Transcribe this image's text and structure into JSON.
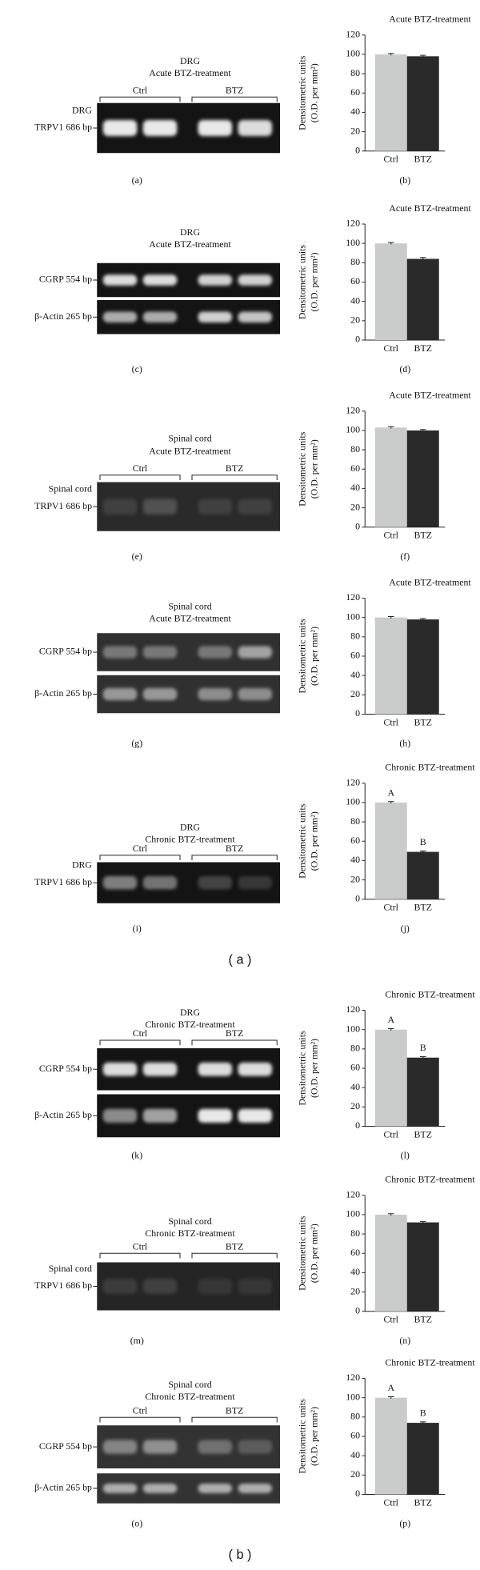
{
  "chart_data": [
    {
      "type": "bar",
      "title": "Acute BTZ-treatment",
      "ylabel": [
        "Densitometric units",
        "(O.D. per mm²)"
      ],
      "categories": [
        "Ctrl",
        "BTZ"
      ],
      "values": [
        100,
        98
      ],
      "errors": [
        1,
        1
      ],
      "colors": [
        "#c9cccb",
        "#2a2a2a"
      ],
      "ylim": [
        0,
        120
      ],
      "yticks": [
        0,
        20,
        40,
        60,
        80,
        100,
        120
      ],
      "panel": "(b)"
    },
    {
      "type": "bar",
      "title": "Acute BTZ-treatment",
      "ylabel": [
        "Densitometric units",
        "(O.D. per mm²)"
      ],
      "categories": [
        "Ctrl",
        "BTZ"
      ],
      "values": [
        100,
        84
      ],
      "errors": [
        1,
        1.5
      ],
      "colors": [
        "#c9cccb",
        "#2a2a2a"
      ],
      "ylim": [
        0,
        120
      ],
      "yticks": [
        0,
        20,
        40,
        60,
        80,
        100,
        120
      ],
      "panel": "(d)"
    },
    {
      "type": "bar",
      "title": "Acute BTZ-treatment",
      "ylabel": [
        "Densitometric units",
        "(O.D. per mm²)"
      ],
      "categories": [
        "Ctrl",
        "BTZ"
      ],
      "values": [
        103,
        100
      ],
      "errors": [
        1,
        1
      ],
      "colors": [
        "#c9cccb",
        "#2a2a2a"
      ],
      "ylim": [
        0,
        120
      ],
      "yticks": [
        0,
        20,
        40,
        60,
        80,
        100,
        120
      ],
      "panel": "(f)"
    },
    {
      "type": "bar",
      "title": "Acute BTZ-treatment",
      "ylabel": [
        "Densitometric units",
        "(O.D. per mm²)"
      ],
      "categories": [
        "Ctrl",
        "BTZ"
      ],
      "values": [
        100,
        98
      ],
      "errors": [
        1,
        1
      ],
      "colors": [
        "#c9cccb",
        "#2a2a2a"
      ],
      "ylim": [
        0,
        120
      ],
      "yticks": [
        0,
        20,
        40,
        60,
        80,
        100,
        120
      ],
      "panel": "(h)"
    },
    {
      "type": "bar",
      "title": "Chronic BTZ-treatment",
      "ylabel": [
        "Densitometric units",
        "(O.D. per mm²)"
      ],
      "categories": [
        "Ctrl",
        "BTZ"
      ],
      "values": [
        100,
        49
      ],
      "errors": [
        1,
        1
      ],
      "annotations": [
        "A",
        "B"
      ],
      "colors": [
        "#c9cccb",
        "#2a2a2a"
      ],
      "ylim": [
        0,
        120
      ],
      "yticks": [
        0,
        20,
        40,
        60,
        80,
        100,
        120
      ],
      "panel": "(j)"
    },
    {
      "type": "bar",
      "title": "Chronic BTZ-treatment",
      "ylabel": [
        "Densitometric units",
        "(O.D. per mm²)"
      ],
      "categories": [
        "Ctrl",
        "BTZ"
      ],
      "values": [
        100,
        71
      ],
      "errors": [
        1,
        1
      ],
      "annotations": [
        "A",
        "B"
      ],
      "colors": [
        "#c9cccb",
        "#2a2a2a"
      ],
      "ylim": [
        0,
        120
      ],
      "yticks": [
        0,
        20,
        40,
        60,
        80,
        100,
        120
      ],
      "panel": "(l)"
    },
    {
      "type": "bar",
      "title": "Chronic BTZ-treatment",
      "ylabel": [
        "Densitometric units",
        "(O.D. per mm²)"
      ],
      "categories": [
        "Ctrl",
        "BTZ"
      ],
      "values": [
        100,
        92
      ],
      "errors": [
        1,
        1
      ],
      "colors": [
        "#c9cccb",
        "#2a2a2a"
      ],
      "ylim": [
        0,
        120
      ],
      "yticks": [
        0,
        20,
        40,
        60,
        80,
        100,
        120
      ],
      "panel": "(n)"
    },
    {
      "type": "bar",
      "title": "Chronic BTZ-treatment",
      "ylabel": [
        "Densitometric units",
        "(O.D. per mm²)"
      ],
      "categories": [
        "Ctrl",
        "BTZ"
      ],
      "values": [
        100,
        74
      ],
      "errors": [
        1,
        1
      ],
      "annotations": [
        "A",
        "B"
      ],
      "colors": [
        "#c9cccb",
        "#2a2a2a"
      ],
      "ylim": [
        0,
        120
      ],
      "yticks": [
        0,
        20,
        40,
        60,
        80,
        100,
        120
      ],
      "panel": "(p)"
    }
  ],
  "gels": [
    {
      "title": [
        "DRG",
        "Acute BTZ-treatment"
      ],
      "groups": [
        "Ctrl",
        "BTZ"
      ],
      "bands": [
        [
          "DRG",
          "TRPV1 686 bp"
        ]
      ],
      "panel": "(a)"
    },
    {
      "title": [
        "DRG",
        "Acute BTZ-treatment"
      ],
      "bands": [
        [
          "CGRP 554 bp"
        ],
        [
          "β-Actin 265 bp"
        ]
      ],
      "panel": "(c)"
    },
    {
      "title": [
        "Spinal cord",
        "Acute BTZ-treatment"
      ],
      "groups": [
        "Ctrl",
        "BTZ"
      ],
      "bands": [
        [
          "Spinal cord",
          "TRPV1 686 bp"
        ]
      ],
      "panel": "(e)"
    },
    {
      "title": [
        "Spinal cord",
        "Acute BTZ-treatment"
      ],
      "bands": [
        [
          "CGRP 554 bp"
        ],
        [
          "β-Actin 265 bp"
        ]
      ],
      "panel": "(g)"
    },
    {
      "title": [
        "DRG",
        "Chronic BTZ-treatment"
      ],
      "groups": [
        "Ctrl",
        "BTZ"
      ],
      "bands": [
        [
          "DRG",
          "TRPV1 686 bp"
        ]
      ],
      "panel": "(i)"
    },
    {
      "title": [
        "DRG",
        "Chronic BTZ-treatment"
      ],
      "groups": [
        "Ctrl",
        "BTZ"
      ],
      "bands": [
        [
          "CGRP 554 bp"
        ],
        [
          "β-Actin 265 bp"
        ]
      ],
      "panel": "(k)"
    },
    {
      "title": [
        "Spinal cord",
        "Chronic BTZ-treatment"
      ],
      "groups": [
        "Ctrl",
        "BTZ"
      ],
      "bands": [
        [
          "Spinal cord",
          "TRPV1 686 bp"
        ]
      ],
      "panel": "(m)"
    },
    {
      "title": [
        "Spinal cord",
        "Chronic BTZ-treatment"
      ],
      "groups": [
        "Ctrl",
        "BTZ"
      ],
      "bands": [
        [
          "CGRP 554 bp"
        ],
        [
          "β-Actin 265 bp"
        ]
      ],
      "panel": "(o)"
    }
  ],
  "group_labels": [
    "( a )",
    "( b )"
  ]
}
